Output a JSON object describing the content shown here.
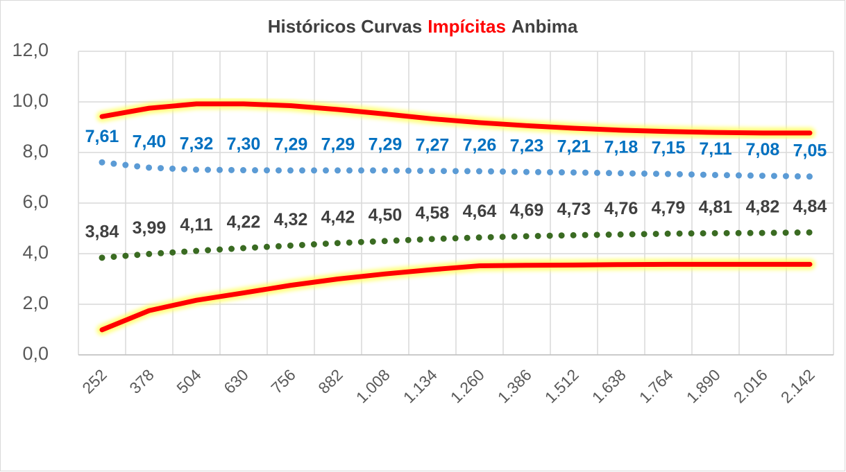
{
  "chart_data": {
    "type": "line",
    "title_parts": [
      "Históricos Curvas",
      "Impícitas",
      "Anbima"
    ],
    "title_colors": [
      "#404040",
      "#ff0000",
      "#404040"
    ],
    "categories": [
      "252",
      "378",
      "504",
      "630",
      "756",
      "882",
      "1.008",
      "1.134",
      "1.260",
      "1.386",
      "1.512",
      "1.638",
      "1.764",
      "1.890",
      "2.016",
      "2.142"
    ],
    "ylim": [
      0,
      12
    ],
    "yticks": [
      {
        "value": 0,
        "label": "0,0"
      },
      {
        "value": 2,
        "label": "2,0"
      },
      {
        "value": 4,
        "label": "4,0"
      },
      {
        "value": 6,
        "label": "6,0"
      },
      {
        "value": 8,
        "label": "8,0"
      },
      {
        "value": 10,
        "label": "10,0"
      },
      {
        "value": 12,
        "label": "12,0"
      }
    ],
    "grid": true,
    "series": [
      {
        "color": "#ff0000",
        "style": "solid",
        "glow": "#ffff66",
        "values": [
          9.42,
          9.75,
          9.92,
          9.92,
          9.85,
          9.7,
          9.52,
          9.33,
          9.18,
          9.06,
          8.96,
          8.88,
          8.83,
          8.79,
          8.77,
          8.77
        ]
      },
      {
        "color": "#ff0000",
        "style": "solid",
        "glow": "#ffff66",
        "values": [
          0.99,
          1.75,
          2.16,
          2.45,
          2.75,
          3.0,
          3.2,
          3.37,
          3.52,
          3.54,
          3.55,
          3.57,
          3.58,
          3.58,
          3.58,
          3.58
        ]
      },
      {
        "color": "#5b9bd5",
        "style": "dotted",
        "label_color": "#0070c0",
        "values": [
          7.61,
          7.4,
          7.32,
          7.3,
          7.29,
          7.29,
          7.29,
          7.27,
          7.26,
          7.23,
          7.21,
          7.18,
          7.15,
          7.11,
          7.08,
          7.05
        ],
        "value_labels": [
          "7,61",
          "7,40",
          "7,32",
          "7,30",
          "7,29",
          "7,29",
          "7,29",
          "7,27",
          "7,26",
          "7,23",
          "7,21",
          "7,18",
          "7,15",
          "7,11",
          "7,08",
          "7,05"
        ]
      },
      {
        "color": "#3a6b22",
        "style": "dotted",
        "label_color": "#404040",
        "values": [
          3.84,
          3.99,
          4.11,
          4.22,
          4.32,
          4.42,
          4.5,
          4.58,
          4.64,
          4.69,
          4.73,
          4.76,
          4.79,
          4.81,
          4.82,
          4.84
        ],
        "value_labels": [
          "3,84",
          "3,99",
          "4,11",
          "4,22",
          "4,32",
          "4,42",
          "4,50",
          "4,58",
          "4,64",
          "4,69",
          "4,73",
          "4,76",
          "4,79",
          "4,81",
          "4,82",
          "4,84"
        ]
      }
    ]
  }
}
